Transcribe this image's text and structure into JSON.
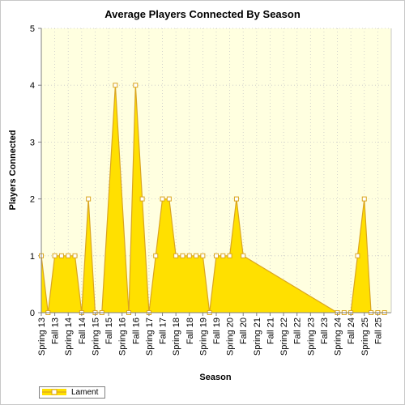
{
  "chart_data": {
    "type": "area",
    "title": "Average Players Connected By Season",
    "xlabel": "Season",
    "ylabel": "Players Connected",
    "ylim": [
      0,
      5
    ],
    "yticks": [
      "0",
      "1",
      "2",
      "3",
      "4",
      "5"
    ],
    "grid": true,
    "legend_position": "bottom-left",
    "categories": [
      "Spring 13",
      "Fall 13",
      "Spring 14",
      "Fall 14",
      "Spring 15",
      "Fall 15",
      "Spring 16",
      "Fall 16",
      "Spring 17",
      "Fall 17",
      "Spring 18",
      "Fall 18",
      "Spring 19",
      "Fall 19",
      "Spring 20",
      "Fall 20",
      "Spring 21",
      "Fall 21",
      "Spring 22",
      "Fall 22",
      "Spring 23",
      "Fall 23",
      "Spring 24",
      "Fall 24",
      "Spring 25",
      "Fall 25"
    ],
    "series": [
      {
        "name": "Lament",
        "color": "#ffe000",
        "line_color": "#daa520",
        "points": [
          {
            "x": 0.0,
            "y": 1
          },
          {
            "x": 0.5,
            "y": 0
          },
          {
            "x": 1.0,
            "y": 1
          },
          {
            "x": 1.5,
            "y": 1
          },
          {
            "x": 2.0,
            "y": 1
          },
          {
            "x": 2.5,
            "y": 1
          },
          {
            "x": 3.0,
            "y": 0
          },
          {
            "x": 3.5,
            "y": 2
          },
          {
            "x": 4.0,
            "y": 0
          },
          {
            "x": 4.5,
            "y": 0
          },
          {
            "x": 5.5,
            "y": 4
          },
          {
            "x": 6.5,
            "y": 0
          },
          {
            "x": 7.0,
            "y": 4
          },
          {
            "x": 7.5,
            "y": 2
          },
          {
            "x": 8.0,
            "y": 0
          },
          {
            "x": 8.5,
            "y": 1
          },
          {
            "x": 9.0,
            "y": 2
          },
          {
            "x": 9.5,
            "y": 2
          },
          {
            "x": 10.0,
            "y": 1
          },
          {
            "x": 10.5,
            "y": 1
          },
          {
            "x": 11.0,
            "y": 1
          },
          {
            "x": 11.5,
            "y": 1
          },
          {
            "x": 12.0,
            "y": 1
          },
          {
            "x": 12.5,
            "y": 0
          },
          {
            "x": 13.0,
            "y": 1
          },
          {
            "x": 13.5,
            "y": 1
          },
          {
            "x": 14.0,
            "y": 1
          },
          {
            "x": 14.5,
            "y": 2
          },
          {
            "x": 15.0,
            "y": 1
          },
          {
            "x": 22.0,
            "y": 0
          },
          {
            "x": 22.5,
            "y": 0
          },
          {
            "x": 23.0,
            "y": 0
          },
          {
            "x": 23.5,
            "y": 1
          },
          {
            "x": 24.0,
            "y": 2
          },
          {
            "x": 24.5,
            "y": 0
          },
          {
            "x": 25.0,
            "y": 0
          },
          {
            "x": 25.5,
            "y": 0
          }
        ]
      }
    ]
  },
  "colors": {
    "plot_background": "#ffffe0",
    "grid": "#c8c8c8",
    "axis": "#808080"
  }
}
